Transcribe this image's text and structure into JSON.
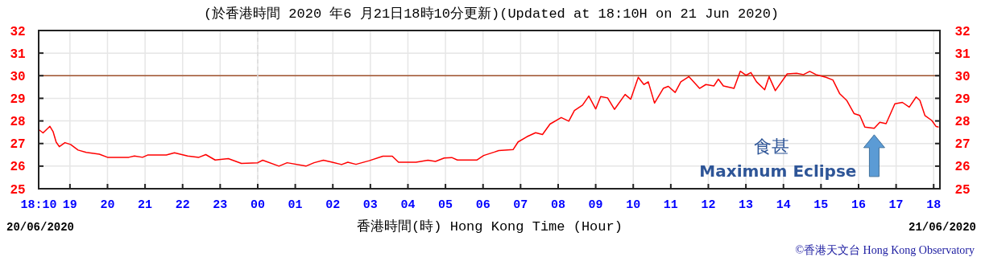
{
  "chart_data": {
    "type": "line",
    "title": "(於香港時間 2020 年6 月21日18時10分更新)(Updated at 18:10H on 21 Jun 2020)",
    "xlabel": "香港時間(時) Hong Kong Time (Hour)",
    "xlim": [
      "2020-06-20T18:10",
      "2020-06-21T18:10"
    ],
    "xticks": [
      {
        "value": "2020-06-20T18:10",
        "label": "18:10"
      },
      {
        "value": "2020-06-20T19:00",
        "label": "19"
      },
      {
        "value": "2020-06-20T20:00",
        "label": "20"
      },
      {
        "value": "2020-06-20T21:00",
        "label": "21"
      },
      {
        "value": "2020-06-20T22:00",
        "label": "22"
      },
      {
        "value": "2020-06-20T23:00",
        "label": "23"
      },
      {
        "value": "2020-06-21T00:00",
        "label": "00"
      },
      {
        "value": "2020-06-21T01:00",
        "label": "01"
      },
      {
        "value": "2020-06-21T02:00",
        "label": "02"
      },
      {
        "value": "2020-06-21T03:00",
        "label": "03"
      },
      {
        "value": "2020-06-21T04:00",
        "label": "04"
      },
      {
        "value": "2020-06-21T05:00",
        "label": "05"
      },
      {
        "value": "2020-06-21T06:00",
        "label": "06"
      },
      {
        "value": "2020-06-21T07:00",
        "label": "07"
      },
      {
        "value": "2020-06-21T08:00",
        "label": "08"
      },
      {
        "value": "2020-06-21T09:00",
        "label": "09"
      },
      {
        "value": "2020-06-21T10:00",
        "label": "10"
      },
      {
        "value": "2020-06-21T11:00",
        "label": "11"
      },
      {
        "value": "2020-06-21T12:00",
        "label": "12"
      },
      {
        "value": "2020-06-21T13:00",
        "label": "13"
      },
      {
        "value": "2020-06-21T14:00",
        "label": "14"
      },
      {
        "value": "2020-06-21T15:00",
        "label": "15"
      },
      {
        "value": "2020-06-21T16:00",
        "label": "16"
      },
      {
        "value": "2020-06-21T17:00",
        "label": "17"
      },
      {
        "value": "2020-06-21T18:00",
        "label": "18"
      }
    ],
    "ylim": [
      25,
      32
    ],
    "yticks": [
      25,
      26,
      27,
      28,
      29,
      30,
      31,
      32
    ],
    "y2lim": [
      25,
      32
    ],
    "y2ticks": [
      25,
      26,
      27,
      28,
      29,
      30,
      31,
      32
    ],
    "grid": true,
    "series": [
      {
        "color": "#ff0000",
        "x": [
          "2020-06-20T18:10",
          "2020-06-20T18:17",
          "2020-06-20T18:28",
          "2020-06-20T18:33",
          "2020-06-20T18:38",
          "2020-06-20T18:43",
          "2020-06-20T18:52",
          "2020-06-20T19:01",
          "2020-06-20T19:13",
          "2020-06-20T19:26",
          "2020-06-20T19:47",
          "2020-06-20T20:00",
          "2020-06-20T20:34",
          "2020-06-20T20:43",
          "2020-06-20T20:56",
          "2020-06-20T21:04",
          "2020-06-20T21:34",
          "2020-06-20T21:47",
          "2020-06-20T22:08",
          "2020-06-20T22:26",
          "2020-06-20T22:37",
          "2020-06-20T22:52",
          "2020-06-20T23:13",
          "2020-06-20T23:34",
          "2020-06-21T00:00",
          "2020-06-21T00:08",
          "2020-06-21T00:34",
          "2020-06-21T00:47",
          "2020-06-21T01:17",
          "2020-06-21T01:30",
          "2020-06-21T01:45",
          "2020-06-21T01:59",
          "2020-06-21T02:14",
          "2020-06-21T02:24",
          "2020-06-21T02:37",
          "2020-06-21T02:58",
          "2020-06-21T03:20",
          "2020-06-21T03:35",
          "2020-06-21T03:45",
          "2020-06-21T04:13",
          "2020-06-21T04:32",
          "2020-06-21T04:44",
          "2020-06-21T04:58",
          "2020-06-21T05:10",
          "2020-06-21T05:19",
          "2020-06-21T05:50",
          "2020-06-21T06:01",
          "2020-06-21T06:18",
          "2020-06-21T06:25",
          "2020-06-21T06:48",
          "2020-06-21T06:56",
          "2020-06-21T07:10",
          "2020-06-21T07:24",
          "2020-06-21T07:35",
          "2020-06-21T07:47",
          "2020-06-21T08:05",
          "2020-06-21T08:17",
          "2020-06-21T08:26",
          "2020-06-21T08:39",
          "2020-06-21T08:49",
          "2020-06-21T09:00",
          "2020-06-21T09:08",
          "2020-06-21T09:19",
          "2020-06-21T09:30",
          "2020-06-21T09:47",
          "2020-06-21T09:56",
          "2020-06-21T10:08",
          "2020-06-21T10:17",
          "2020-06-21T10:24",
          "2020-06-21T10:34",
          "2020-06-21T10:48",
          "2020-06-21T10:56",
          "2020-06-21T11:07",
          "2020-06-21T11:16",
          "2020-06-21T11:29",
          "2020-06-21T11:46",
          "2020-06-21T11:56",
          "2020-06-21T12:09",
          "2020-06-21T12:16",
          "2020-06-21T12:24",
          "2020-06-21T12:41",
          "2020-06-21T12:51",
          "2020-06-21T13:00",
          "2020-06-21T13:08",
          "2020-06-21T13:17",
          "2020-06-21T13:30",
          "2020-06-21T13:37",
          "2020-06-21T13:47",
          "2020-06-21T14:06",
          "2020-06-21T14:21",
          "2020-06-21T14:32",
          "2020-06-21T14:42",
          "2020-06-21T14:52",
          "2020-06-21T15:08",
          "2020-06-21T15:19",
          "2020-06-21T15:30",
          "2020-06-21T15:41",
          "2020-06-21T15:53",
          "2020-06-21T16:02",
          "2020-06-21T16:10",
          "2020-06-21T16:25",
          "2020-06-21T16:34",
          "2020-06-21T16:44",
          "2020-06-21T16:58",
          "2020-06-21T17:10",
          "2020-06-21T17:21",
          "2020-06-21T17:32",
          "2020-06-21T17:38",
          "2020-06-21T17:46",
          "2020-06-21T17:57",
          "2020-06-21T18:04",
          "2020-06-21T18:08"
        ],
        "values": [
          27.62,
          27.47,
          27.76,
          27.53,
          27.06,
          26.86,
          27.04,
          26.96,
          26.71,
          26.61,
          26.53,
          26.39,
          26.39,
          26.45,
          26.39,
          26.49,
          26.49,
          26.59,
          26.45,
          26.39,
          26.51,
          26.27,
          26.33,
          26.12,
          26.15,
          26.26,
          26.0,
          26.15,
          26.0,
          26.15,
          26.26,
          26.17,
          26.07,
          26.17,
          26.08,
          26.24,
          26.44,
          26.44,
          26.17,
          26.17,
          26.26,
          26.21,
          26.36,
          26.38,
          26.27,
          26.27,
          26.47,
          26.62,
          26.69,
          26.73,
          27.07,
          27.3,
          27.48,
          27.4,
          27.86,
          28.15,
          27.99,
          28.46,
          28.7,
          29.1,
          28.53,
          29.08,
          29.02,
          28.51,
          29.17,
          28.96,
          29.93,
          29.61,
          29.73,
          28.79,
          29.44,
          29.53,
          29.26,
          29.73,
          29.96,
          29.44,
          29.61,
          29.55,
          29.85,
          29.55,
          29.44,
          30.2,
          30.02,
          30.14,
          29.73,
          29.38,
          29.96,
          29.34,
          30.08,
          30.11,
          30.05,
          30.19,
          30.05,
          29.93,
          29.81,
          29.2,
          28.91,
          28.32,
          28.24,
          27.73,
          27.67,
          27.94,
          27.88,
          28.76,
          28.82,
          28.61,
          29.06,
          28.91,
          28.24,
          28.02,
          27.75,
          27.73
        ]
      }
    ],
    "ref_lines": [
      {
        "axis": "y",
        "value": 30,
        "color": "#a0522d",
        "line_style": "solid"
      },
      {
        "axis": "x",
        "value": "2020-06-21T00:00",
        "color": "#dddddd",
        "line_style": "dashed"
      }
    ],
    "annotations": [
      "20/06/2020",
      "21/06/2020",
      "©香港天文台 Hong Kong Observatory",
      "食甚",
      {
        "text": "Maximum Eclipse",
        "x": "2020-06-21T16:25",
        "y": 27.67
      }
    ]
  }
}
